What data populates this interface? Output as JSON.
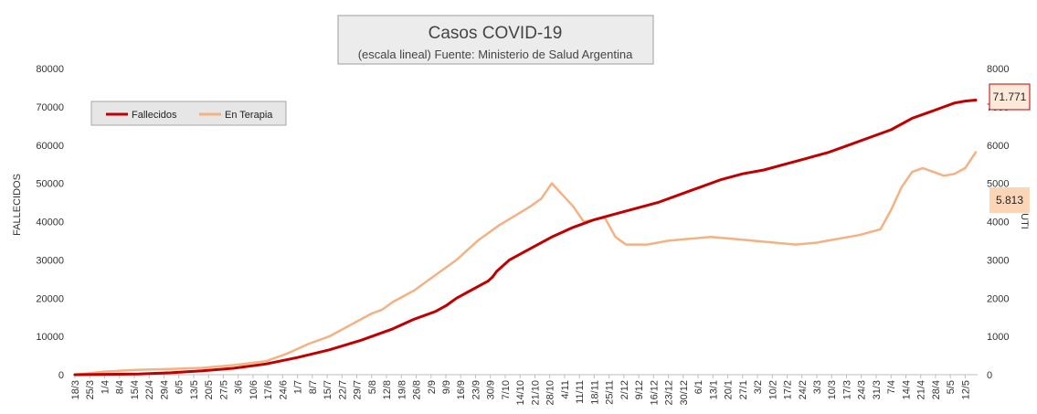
{
  "chart_data": {
    "type": "line",
    "title": "Casos COVID-19",
    "subtitle": "(escala lineal) Fuente: Ministerio de Salud Argentina",
    "ylabel_left": "FALLECIDOS",
    "ylabel_right": "UTI",
    "ylim_left": [
      0,
      80000
    ],
    "ylim_right": [
      0,
      8000
    ],
    "yticks_left": [
      "0",
      "10000",
      "20000",
      "30000",
      "40000",
      "50000",
      "60000",
      "70000",
      "80000"
    ],
    "yticks_right": [
      "0",
      "1000",
      "2000",
      "3000",
      "4000",
      "5000",
      "6000",
      "7000",
      "8000"
    ],
    "x_day_range": [
      0,
      425
    ],
    "x_tick_labels": [
      "18/3",
      "25/3",
      "1/4",
      "8/4",
      "15/4",
      "22/4",
      "29/4",
      "6/5",
      "13/5",
      "20/5",
      "27/5",
      "3/6",
      "10/6",
      "17/6",
      "24/6",
      "1/7",
      "8/7",
      "15/7",
      "22/7",
      "29/7",
      "5/8",
      "12/8",
      "19/8",
      "26/8",
      "2/9",
      "9/9",
      "16/9",
      "23/9",
      "30/9",
      "7/10",
      "14/10",
      "21/10",
      "28/10",
      "4/11",
      "11/11",
      "18/11",
      "25/11",
      "2/12",
      "9/12",
      "16/12",
      "23/12",
      "30/12",
      "6/1",
      "13/1",
      "20/1",
      "27/1",
      "3/2",
      "10/2",
      "17/2",
      "24/2",
      "3/3",
      "10/3",
      "17/3",
      "24/3",
      "31/3",
      "7/4",
      "14/4",
      "21/4",
      "28/4",
      "5/5",
      "12/5"
    ],
    "legend": {
      "placement": "top-left",
      "entries": [
        "Fallecidos",
        "En Terapia"
      ]
    },
    "grid": false,
    "series": [
      {
        "name": "Fallecidos",
        "axis": "left",
        "color": "#c00000",
        "x": [
          0,
          14,
          30,
          45,
          60,
          75,
          90,
          105,
          120,
          135,
          150,
          160,
          170,
          175,
          180,
          185,
          190,
          195,
          197,
          199,
          205,
          215,
          225,
          235,
          245,
          255,
          265,
          275,
          285,
          295,
          305,
          315,
          325,
          335,
          345,
          355,
          365,
          375,
          385,
          395,
          405,
          410,
          415,
          420,
          425
        ],
        "y": [
          0,
          100,
          200,
          500,
          1000,
          1700,
          2800,
          4500,
          6500,
          9000,
          12000,
          14500,
          16500,
          18000,
          20000,
          21500,
          23000,
          24500,
          25500,
          27000,
          30000,
          33000,
          36000,
          38500,
          40500,
          42000,
          43500,
          45000,
          47000,
          49000,
          51000,
          52500,
          53500,
          55000,
          56500,
          58000,
          60000,
          62000,
          64000,
          67000,
          69000,
          70000,
          71000,
          71500,
          71771
        ]
      },
      {
        "name": "En Terapia",
        "axis": "right",
        "color": "#f4b183",
        "x": [
          0,
          14,
          30,
          45,
          60,
          75,
          90,
          100,
          110,
          120,
          130,
          140,
          145,
          150,
          160,
          170,
          180,
          190,
          200,
          215,
          220,
          225,
          230,
          235,
          240,
          250,
          255,
          260,
          270,
          280,
          290,
          300,
          310,
          320,
          330,
          340,
          350,
          355,
          360,
          370,
          380,
          385,
          390,
          395,
          400,
          405,
          410,
          415,
          420,
          425
        ],
        "y": [
          0,
          80,
          130,
          150,
          180,
          250,
          350,
          550,
          800,
          1000,
          1300,
          1600,
          1700,
          1900,
          2200,
          2600,
          3000,
          3500,
          3900,
          4400,
          4600,
          5000,
          4700,
          4400,
          4000,
          4100,
          3600,
          3400,
          3400,
          3500,
          3550,
          3600,
          3550,
          3500,
          3450,
          3400,
          3450,
          3500,
          3550,
          3650,
          3800,
          4300,
          4900,
          5300,
          5400,
          5300,
          5200,
          5250,
          5400,
          5813
        ]
      }
    ],
    "callouts": {
      "fallecidos_last": "71.771",
      "terapia_last": "5.813"
    }
  },
  "colors": {
    "fallecidos": "#c00000",
    "terapia": "#f4b183",
    "callout_red_fill": "#fde9d9",
    "callout_orange_fill": "#fbd5b5"
  }
}
